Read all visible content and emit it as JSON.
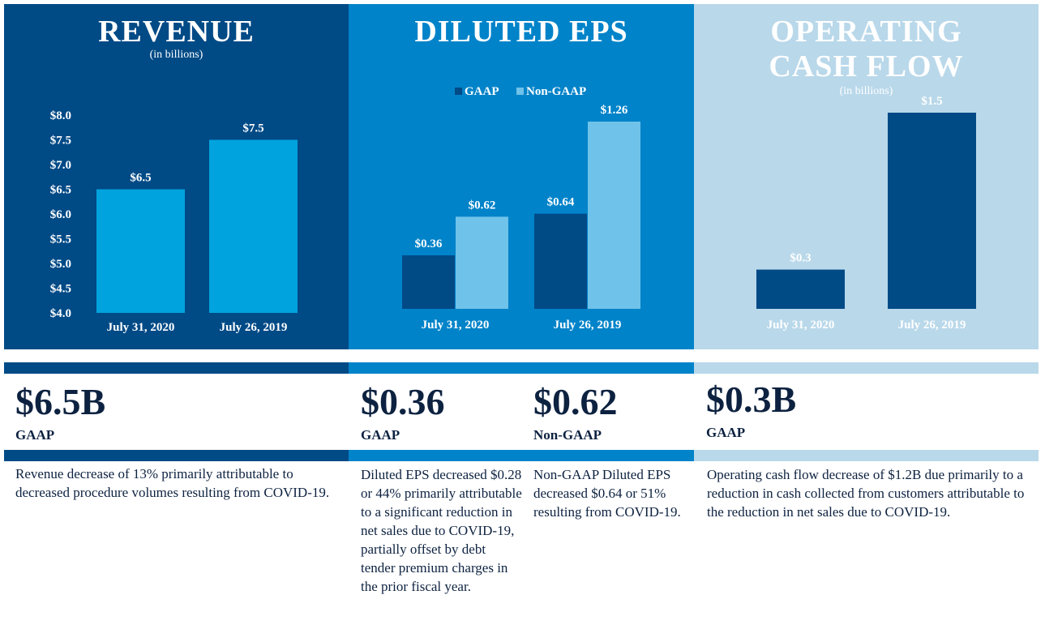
{
  "colors": {
    "revenue_panel": "#004a86",
    "eps_panel": "#0083c9",
    "cash_panel": "#b9d8ea",
    "revenue_bar": "#00a3de",
    "gaap_bar": "#004a86",
    "non_gaap_bar": "#6fc2e9",
    "cash_bar": "#004a86",
    "text_dark": "#0d2240"
  },
  "revenue": {
    "title": "REVENUE",
    "subtitle": "(in billions)",
    "kpi_value": "$6.5B",
    "kpi_label": "GAAP",
    "description": "Revenue decrease of 13% primarily attributable to decreased procedure volumes resulting from COVID-19."
  },
  "eps": {
    "title": "DILUTED EPS",
    "gaap_value": "$0.36",
    "gaap_label": "GAAP",
    "gaap_description": "Diluted EPS decreased $0.28 or 44% primarily attributable to a significant reduction in net sales due to COVID-19, partially offset by debt tender premium charges in the prior fiscal year.",
    "non_gaap_value": "$0.62",
    "non_gaap_label": "Non-GAAP",
    "non_gaap_description": "Non-GAAP Diluted EPS decreased $0.64 or 51% resulting from COVID-19."
  },
  "cash": {
    "title_line1": "OPERATING",
    "title_line2": "CASH FLOW",
    "subtitle": "(in billions)",
    "kpi_value": "$0.3B",
    "kpi_label": "GAAP",
    "description": "Operating cash flow decrease of $1.2B due primarily to a reduction in cash collected from customers attributable to the reduction in net sales due to COVID-19."
  },
  "chart_data": [
    {
      "type": "bar",
      "title": "REVENUE",
      "subtitle": "(in billions)",
      "categories": [
        "July 31, 2020",
        "July 26, 2019"
      ],
      "values": [
        6.5,
        7.5
      ],
      "data_labels": [
        "$6.5",
        "$7.5"
      ],
      "ylim": [
        4.0,
        8.0
      ],
      "yticks": [
        4.0,
        4.5,
        5.0,
        5.5,
        6.0,
        6.5,
        7.0,
        7.5,
        8.0
      ],
      "ytick_labels": [
        "$4.0",
        "$4.5",
        "$5.0",
        "$5.5",
        "$6.0",
        "$6.5",
        "$7.0",
        "$7.5",
        "$8.0"
      ],
      "xlabel": "",
      "ylabel": ""
    },
    {
      "type": "bar",
      "title": "DILUTED EPS",
      "categories": [
        "July 31, 2020",
        "July 26, 2019"
      ],
      "legend": [
        "GAAP",
        "Non-GAAP"
      ],
      "legend_position": "top",
      "series": [
        {
          "name": "GAAP",
          "values": [
            0.36,
            0.64
          ],
          "data_labels": [
            "$0.36",
            "$0.64"
          ]
        },
        {
          "name": "Non-GAAP",
          "values": [
            0.62,
            1.26
          ],
          "data_labels": [
            "$0.62",
            "$1.26"
          ]
        }
      ],
      "ylim": [
        0,
        1.26
      ],
      "xlabel": "",
      "ylabel": ""
    },
    {
      "type": "bar",
      "title": "OPERATING CASH FLOW",
      "subtitle": "(in billions)",
      "categories": [
        "July 31, 2020",
        "July 26, 2019"
      ],
      "values": [
        0.3,
        1.5
      ],
      "data_labels": [
        "$0.3",
        "$1.5"
      ],
      "ylim": [
        0,
        1.5
      ],
      "xlabel": "",
      "ylabel": ""
    }
  ]
}
